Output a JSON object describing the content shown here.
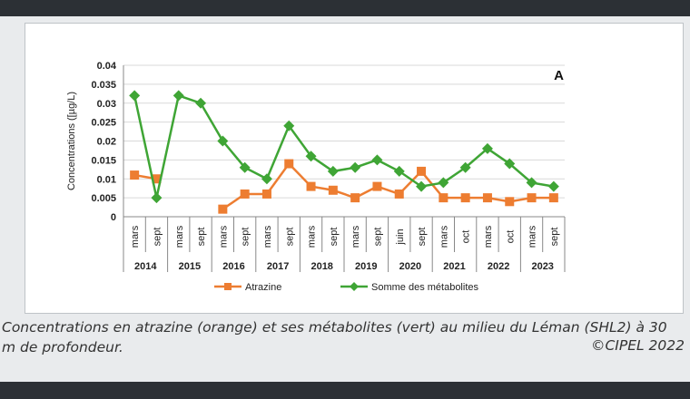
{
  "caption": "Concentrations en atrazine (orange) et ses métabolites (vert) au milieu du Léman (SHL2) à 30 m de profondeur.",
  "credit": "©CIPEL 2022",
  "chart_data": {
    "type": "line",
    "panel_label": "A",
    "ylabel": "Concentrations ([µg/L)",
    "ylim": [
      0,
      0.04
    ],
    "yticks": [
      "0",
      "0.005",
      "0.01",
      "0.015",
      "0.02",
      "0.025",
      "0.03",
      "0.035",
      "0.04"
    ],
    "grid": true,
    "legend_position": "bottom",
    "categories": [
      "mars",
      "sept",
      "mars",
      "sept",
      "mars",
      "sept",
      "mars",
      "sept",
      "mars",
      "sept",
      "mars",
      "sept",
      "juin",
      "sept",
      "mars",
      "oct",
      "mars",
      "oct",
      "mars",
      "sept"
    ],
    "years": [
      "2014",
      "2015",
      "2016",
      "2017",
      "2018",
      "2019",
      "2020",
      "2021",
      "2022",
      "2023"
    ],
    "series": [
      {
        "name": "Atrazine",
        "color": "#ed7d31",
        "marker": "square",
        "values": [
          0.011,
          0.01,
          null,
          null,
          0.002,
          0.006,
          0.006,
          0.014,
          0.008,
          0.007,
          0.005,
          0.008,
          0.006,
          0.012,
          0.005,
          0.005,
          0.005,
          0.004,
          0.005,
          0.005
        ]
      },
      {
        "name": "Somme des métabolites",
        "color": "#3fa535",
        "marker": "diamond",
        "values": [
          0.032,
          0.005,
          0.032,
          0.03,
          0.02,
          0.013,
          0.01,
          0.024,
          0.016,
          0.012,
          0.013,
          0.015,
          0.012,
          0.008,
          0.009,
          0.013,
          0.018,
          0.014,
          0.009,
          0.008
        ]
      }
    ]
  }
}
